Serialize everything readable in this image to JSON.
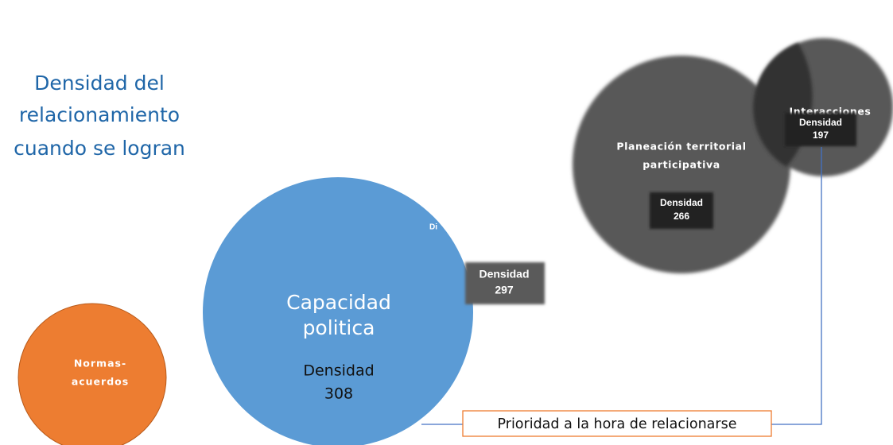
{
  "title": [
    "Densidad del",
    "relacionamiento",
    "cuando se logran"
  ],
  "nodes": [
    {
      "label": [
        "Normas-",
        "acuerdos"
      ]
    },
    {
      "label": [
        "Capacidad",
        "politica"
      ],
      "density_label": "Densidad",
      "density": 308
    },
    {
      "label": [
        "Planeación territorial",
        "participativa"
      ],
      "density_label": "Densidad",
      "density": 266
    },
    {
      "label": [
        "Interacciones"
      ],
      "density_label": "Densidad",
      "density": 197
    }
  ],
  "callout": {
    "fragment": "Di",
    "density_label": "Densidad",
    "density": 297
  },
  "legend": "Prioridad a la hora de relacionarse"
}
